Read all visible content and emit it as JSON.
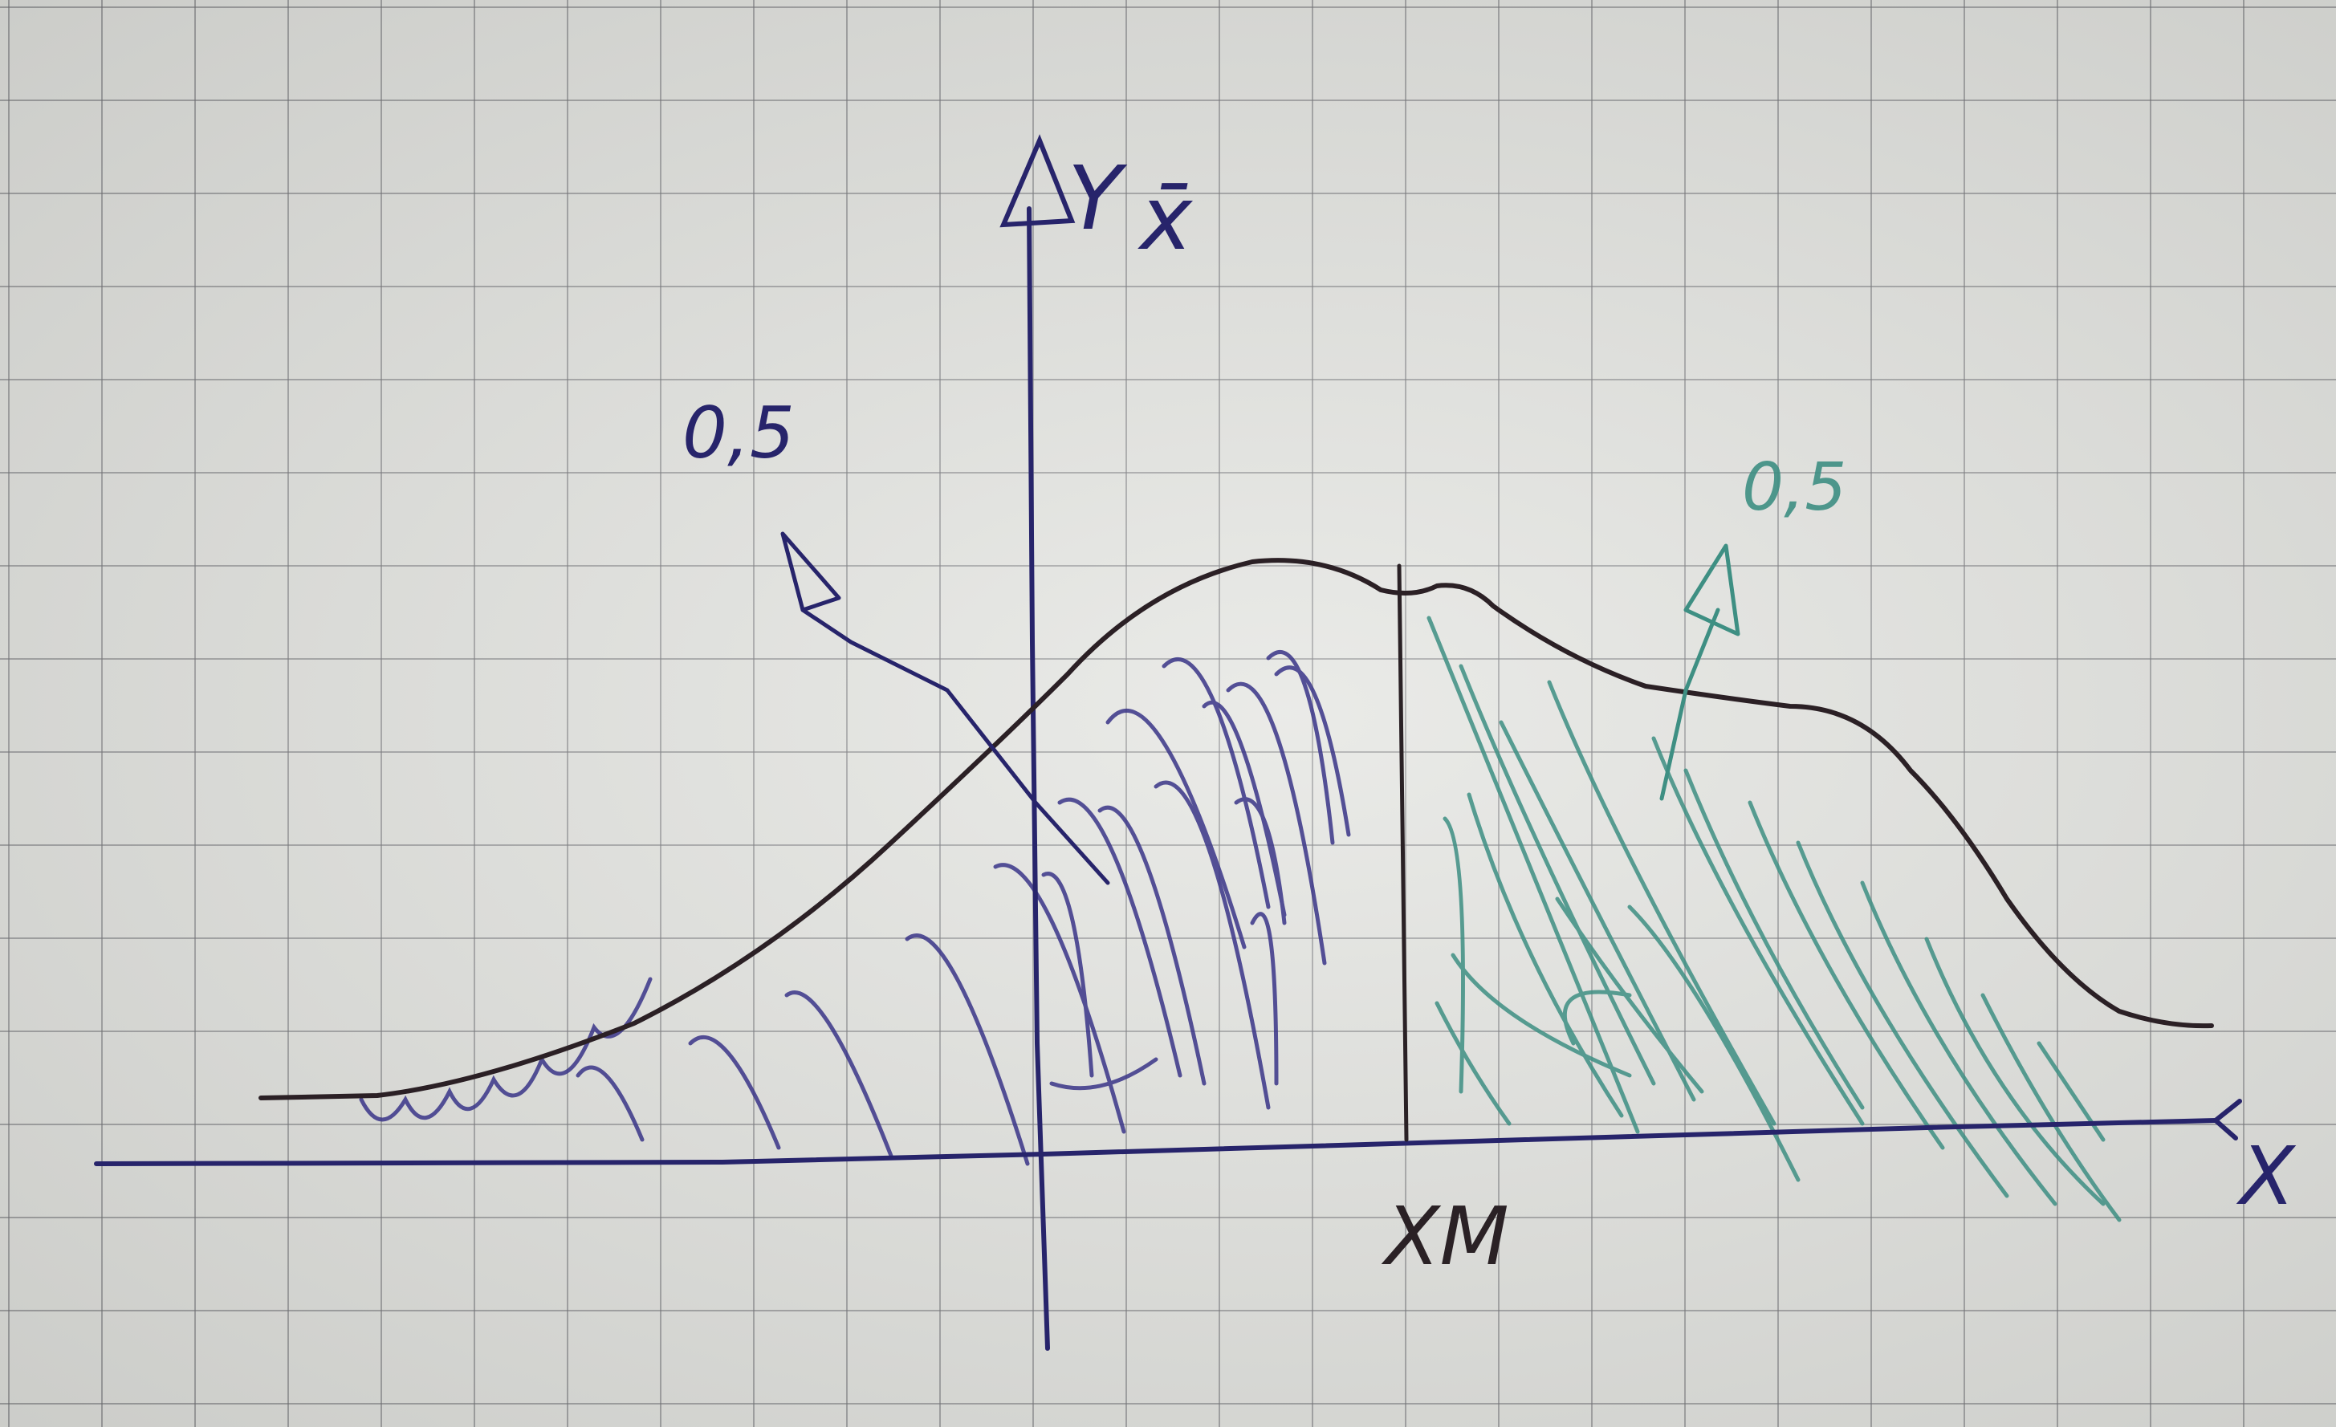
{
  "labels": {
    "y_axis": "Y",
    "y_axis_mark": "x̄",
    "x_axis": "X",
    "median": "XM",
    "left_area": "0,5",
    "right_area": "0,5"
  },
  "colors": {
    "curve": "#2b2025",
    "axes": "#27246b",
    "left_hatch": "#3a3588",
    "right_hatch": "#3e8f83",
    "median_line": "#2a2125",
    "paper": "#e3e4e0"
  }
}
